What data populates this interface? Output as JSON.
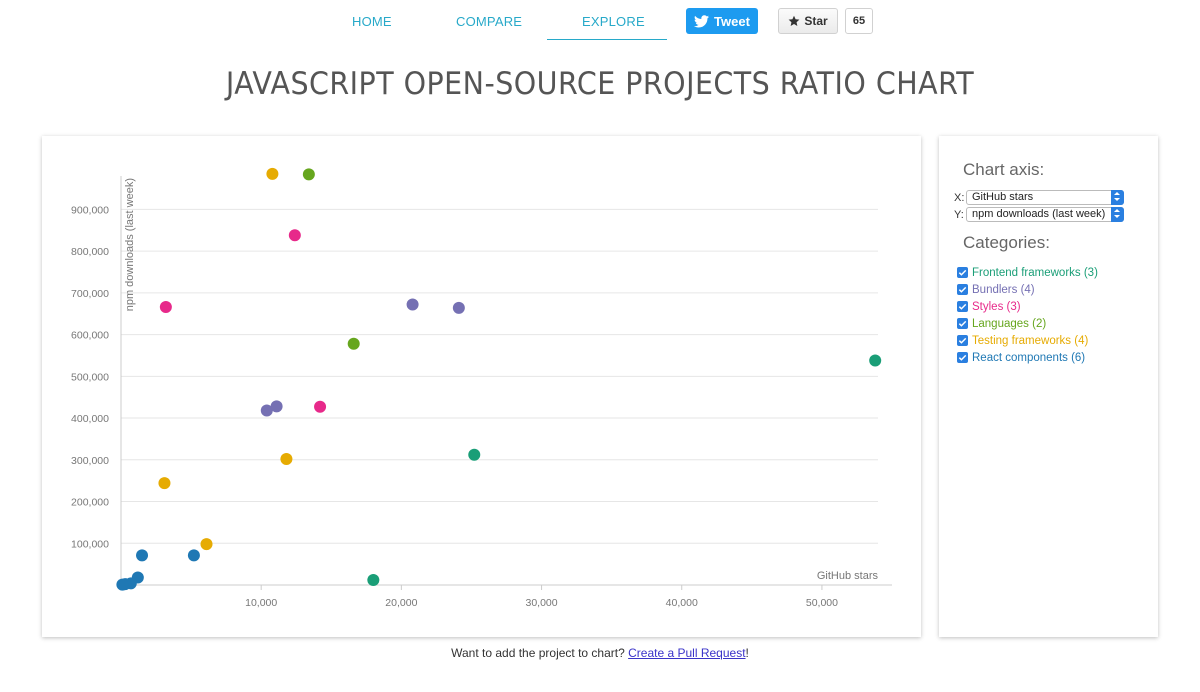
{
  "nav": {
    "home": "HOME",
    "compare": "COMPARE",
    "explore": "EXPLORE",
    "tweet_label": "Tweet",
    "star_label": "Star",
    "star_count": "65"
  },
  "page_title": "JAVASCRIPT OPEN-SOURCE PROJECTS RATIO CHART",
  "colors": {
    "frontend": "#1a9e77",
    "bundlers": "#7570b3",
    "styles": "#e7298a",
    "languages": "#66a61e",
    "testing": "#e6ab02",
    "react": "#1f78b4",
    "accent": "#27a9c9"
  },
  "sidebar": {
    "axis_heading": "Chart axis:",
    "x_letter": "X:",
    "y_letter": "Y:",
    "x_selected": "GitHub stars",
    "y_selected": "npm downloads (last week)",
    "categories_heading": "Categories:",
    "categories": [
      {
        "label": "Frontend frameworks (3)",
        "key": "frontend",
        "checked": true
      },
      {
        "label": "Bundlers (4)",
        "key": "bundlers",
        "checked": true
      },
      {
        "label": "Styles (3)",
        "key": "styles",
        "checked": true
      },
      {
        "label": "Languages (2)",
        "key": "languages",
        "checked": true
      },
      {
        "label": "Testing frameworks (4)",
        "key": "testing",
        "checked": true
      },
      {
        "label": "React components (6)",
        "key": "react",
        "checked": true
      }
    ]
  },
  "footer": {
    "text": "Want to add the project to chart? ",
    "link": "Create a Pull Request",
    "suffix": "!"
  },
  "chart_data": {
    "type": "scatter",
    "xlabel": "GitHub stars",
    "ylabel": "npm downloads (last week)",
    "xlim": [
      0,
      54000
    ],
    "ylim": [
      0,
      980000
    ],
    "x_ticks": [
      10000,
      20000,
      30000,
      40000,
      50000
    ],
    "x_tick_labels": [
      "10,000",
      "20,000",
      "30,000",
      "40,000",
      "50,000"
    ],
    "y_ticks": [
      100000,
      200000,
      300000,
      400000,
      500000,
      600000,
      700000,
      800000,
      900000
    ],
    "y_tick_labels": [
      "100,000",
      "200,000",
      "300,000",
      "400,000",
      "500,000",
      "600,000",
      "700,000",
      "800,000",
      "900,000"
    ],
    "grid": true,
    "series": [
      {
        "key": "frontend",
        "points": [
          [
            53800,
            538000
          ],
          [
            25200,
            312000
          ],
          [
            18000,
            12000
          ]
        ]
      },
      {
        "key": "bundlers",
        "points": [
          [
            20800,
            672000
          ],
          [
            24100,
            664000
          ],
          [
            10400,
            418000
          ],
          [
            11100,
            428000
          ]
        ]
      },
      {
        "key": "styles",
        "points": [
          [
            3200,
            666000
          ],
          [
            12400,
            838000
          ],
          [
            14200,
            427000
          ]
        ]
      },
      {
        "key": "languages",
        "points": [
          [
            13400,
            984000
          ],
          [
            16600,
            578000
          ]
        ]
      },
      {
        "key": "testing",
        "points": [
          [
            10800,
            985000
          ],
          [
            11800,
            302000
          ],
          [
            3100,
            244000
          ],
          [
            6100,
            98000
          ]
        ]
      },
      {
        "key": "react",
        "points": [
          [
            1500,
            71000
          ],
          [
            5200,
            71000
          ],
          [
            1200,
            18000
          ],
          [
            700,
            4000
          ],
          [
            300,
            2000
          ],
          [
            100,
            1000
          ]
        ]
      }
    ]
  }
}
